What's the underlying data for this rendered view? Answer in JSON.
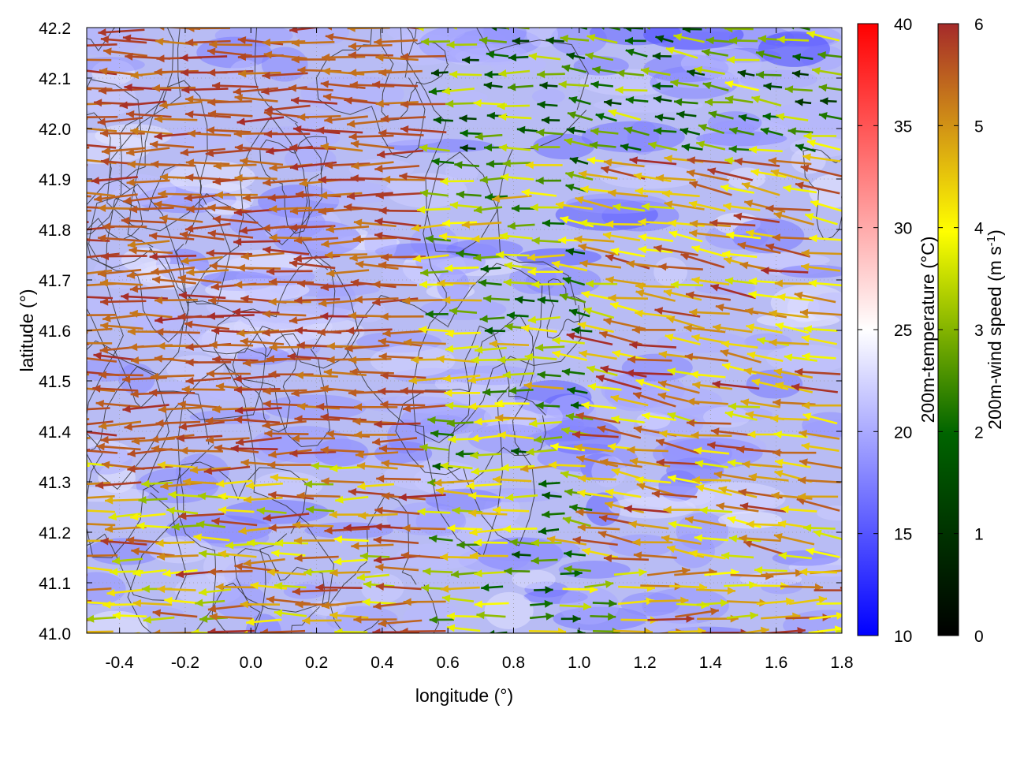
{
  "chart_data": {
    "type": "vector-field",
    "xlabel": "longitude (°)",
    "ylabel": "latitude (°)",
    "xlim": [
      -0.5,
      1.8
    ],
    "ylim": [
      41.0,
      42.2
    ],
    "x_ticks": [
      "-0.4",
      "-0.2",
      "0.0",
      "0.2",
      "0.4",
      "0.6",
      "0.8",
      "1.0",
      "1.2",
      "1.4",
      "1.6",
      "1.8"
    ],
    "x_tick_values": [
      -0.4,
      -0.2,
      0.0,
      0.2,
      0.4,
      0.6,
      0.8,
      1.0,
      1.2,
      1.4,
      1.6,
      1.8
    ],
    "y_ticks": [
      "41.0",
      "41.1",
      "41.2",
      "41.3",
      "41.4",
      "41.5",
      "41.6",
      "41.7",
      "41.8",
      "41.9",
      "42.0",
      "42.1",
      "42.2"
    ],
    "y_tick_values": [
      41.0,
      41.1,
      41.2,
      41.3,
      41.4,
      41.5,
      41.6,
      41.7,
      41.8,
      41.9,
      42.0,
      42.1,
      42.2
    ],
    "grid": true,
    "background_field": {
      "name": "200m-temperature",
      "colorbar_label_main": "200m-temperature (°C)",
      "range": [
        10,
        40
      ],
      "ticks": [
        "10",
        "15",
        "20",
        "25",
        "30",
        "35",
        "40"
      ],
      "tick_values": [
        10,
        15,
        20,
        25,
        30,
        35,
        40
      ],
      "colors": [
        "#0000ff",
        "#ffffff",
        "#ff0000"
      ],
      "typical_value": 20
    },
    "vector_field": {
      "name": "200m-wind speed",
      "colorbar_label_main": "200m-wind speed (m s",
      "colorbar_label_sup": "-1",
      "colorbar_label_end": ")",
      "range": [
        0,
        6
      ],
      "ticks": [
        "0",
        "1",
        "2",
        "3",
        "4",
        "5",
        "6"
      ],
      "tick_values": [
        0,
        1,
        2,
        3,
        4,
        5,
        6
      ],
      "colors": [
        "#000000",
        "#006400",
        "#ffff00",
        "#a52a2a"
      ],
      "dominant_direction": "from east to west, strongest in the west and north"
    },
    "contours": {
      "color": "#333333",
      "description": "terrain elevation contours"
    }
  }
}
